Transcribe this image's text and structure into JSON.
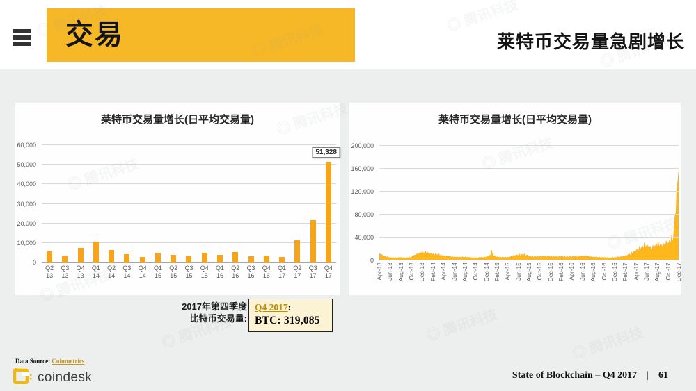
{
  "header": {
    "title": "交易",
    "subtitle": "莱特币交易量急剧增长"
  },
  "chart_data": [
    {
      "type": "bar",
      "title": "莱特币交易量增长(日平均交易量)",
      "categories": [
        "Q2 13",
        "Q3 13",
        "Q4 13",
        "Q1 14",
        "Q2 14",
        "Q3 14",
        "Q4 14",
        "Q1 15",
        "Q2 15",
        "Q3 15",
        "Q4 15",
        "Q1 16",
        "Q2 16",
        "Q3 16",
        "Q4 16",
        "Q1 17",
        "Q2 17",
        "Q3 17",
        "Q4 17"
      ],
      "values": [
        5700,
        3550,
        7300,
        10600,
        6500,
        4150,
        2950,
        5100,
        3800,
        3700,
        5100,
        3900,
        5200,
        3100,
        3400,
        2850,
        11350,
        21650,
        51328
      ],
      "ylim": [
        0,
        60000
      ],
      "ytick_labels": [
        "0",
        "10,000",
        "20,000",
        "30,000",
        "40,000",
        "50,000",
        "60,000"
      ],
      "data_label": {
        "index": 18,
        "text": "51,328"
      },
      "bar_color": "#F5A41C",
      "grid": true,
      "legend": "none"
    },
    {
      "type": "area",
      "title": "莱特币交易量增长(日平均交易量)",
      "xtick_labels": [
        "Apr-13",
        "Jun-13",
        "Aug-13",
        "Oct-13",
        "Dec-13",
        "Feb-14",
        "Apr-14",
        "Jun-14",
        "Aug-14",
        "Oct-14",
        "Dec-14",
        "Feb-15",
        "Apr-15",
        "Jun-15",
        "Aug-15",
        "Oct-15",
        "Dec-15",
        "Feb-16",
        "Apr-16",
        "Jun-16",
        "Aug-16",
        "Oct-16",
        "Dec-16",
        "Feb-17",
        "Apr-17",
        "Jun-17",
        "Aug-17",
        "Oct-17",
        "Dec-17"
      ],
      "xtick_every_months": 2,
      "monthly_values": [
        11000,
        7000,
        5000,
        4500,
        5000,
        4500,
        5500,
        11000,
        14000,
        13000,
        11000,
        10000,
        8000,
        7000,
        6000,
        5500,
        6000,
        5000,
        4500,
        5000,
        6000,
        10000,
        6000,
        5500,
        5000,
        8000,
        9500,
        10500,
        7500,
        6500,
        7000,
        7500,
        7000,
        6500,
        7000,
        6500,
        6500,
        7000,
        8000,
        7000,
        6000,
        5500,
        5000,
        4500,
        5000,
        6000,
        8000,
        11000,
        17000,
        22000,
        26000,
        21000,
        28000,
        26000,
        30000,
        38000,
        155000
      ],
      "spikes": [
        {
          "month_index": 21,
          "value": 18000
        }
      ],
      "ylim": [
        0,
        200000
      ],
      "ytick_labels": [
        "0",
        "40,000",
        "80,000",
        "120,000",
        "160,000",
        "200,000"
      ],
      "fill_color": "#FFB81C",
      "stroke_color": "#F5A41C",
      "grid": true,
      "legend": "none"
    }
  ],
  "annotation": {
    "label_line1": "2017年第四季度",
    "label_line2": "比特币交易量:",
    "box": {
      "link_text": "Q4 2017",
      "suffix": ":",
      "value_text": "BTC: 319,085"
    }
  },
  "footer": {
    "source_label": "Data Source:",
    "source_link": "Coinmetrics",
    "brand": "coindesk",
    "deck_title": "State of Blockchain – Q4 2017",
    "separator": "|",
    "page_number": "61"
  },
  "watermark": {
    "text": "腾讯科技"
  },
  "colors": {
    "accent_yellow": "#F6B827",
    "bar_orange": "#F5A41C",
    "area_yellow": "#FFB81C",
    "link_gold": "#BF8F00",
    "brand_yellow": "#F0B90B",
    "page_bg": "#EDEEEE"
  }
}
